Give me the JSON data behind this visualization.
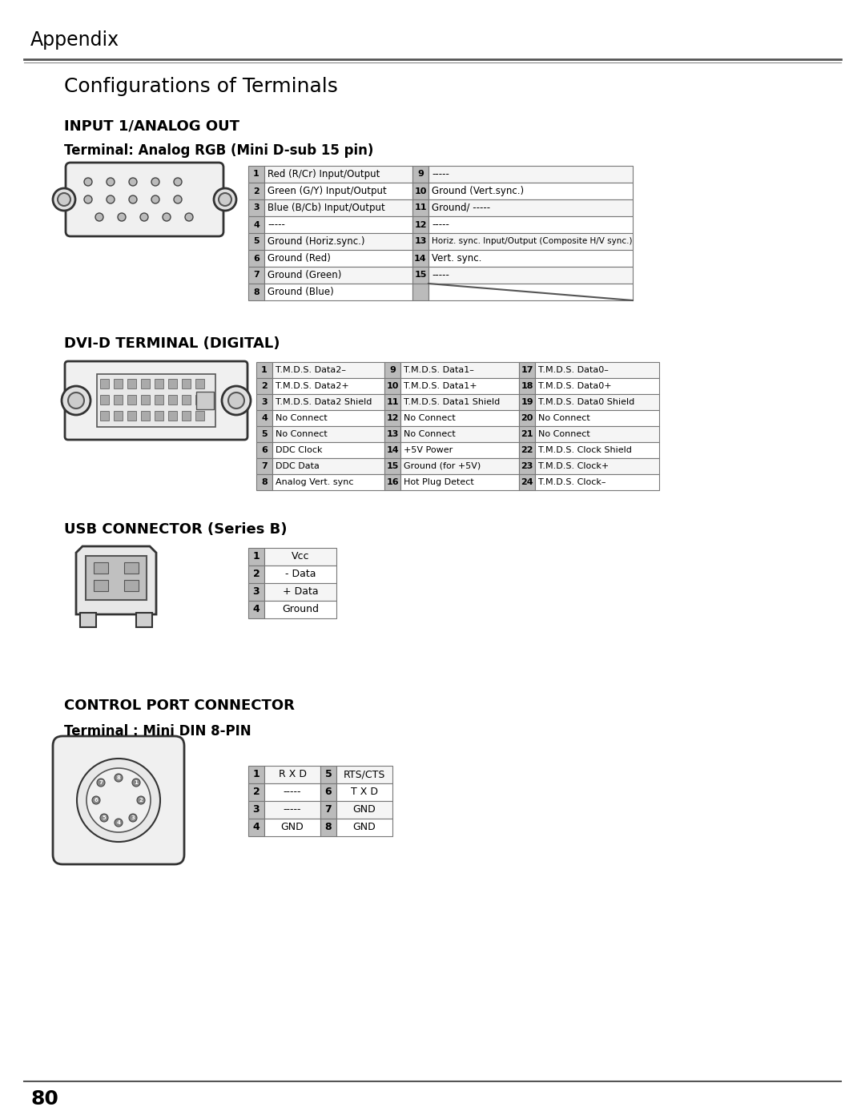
{
  "page_title": "Appendix",
  "section_title": "Configurations of Terminals",
  "bg_color": "#ffffff",
  "row_bg_dark": "#cccccc",
  "row_bg_light": "#ffffff",
  "table_border": "#888888",
  "section1_title": "INPUT 1/ANALOG OUT",
  "section1_subtitle": "Terminal: Analog RGB (Mini D-sub 15 pin)",
  "analog_rows_left": [
    [
      "1",
      "Red (R/Cr) Input/Output"
    ],
    [
      "2",
      "Green (G/Y) Input/Output"
    ],
    [
      "3",
      "Blue (B/Cb) Input/Output"
    ],
    [
      "4",
      "-----"
    ],
    [
      "5",
      "Ground (Horiz.sync.)"
    ],
    [
      "6",
      "Ground (Red)"
    ],
    [
      "7",
      "Ground (Green)"
    ],
    [
      "8",
      "Ground (Blue)"
    ]
  ],
  "analog_rows_right": [
    [
      "9",
      "-----"
    ],
    [
      "10",
      "Ground (Vert.sync.)"
    ],
    [
      "11",
      "Ground/ -----"
    ],
    [
      "12",
      "-----"
    ],
    [
      "13",
      "Horiz. sync. Input/Output (Composite H/V sync.)"
    ],
    [
      "14",
      "Vert. sync."
    ],
    [
      "15",
      "-----"
    ],
    [
      "",
      ""
    ]
  ],
  "section2_title": "DVI-D TERMINAL (DIGITAL)",
  "dvi_rows": [
    [
      "1",
      "T.M.D.S. Data2–",
      "9",
      "T.M.D.S. Data1–",
      "17",
      "T.M.D.S. Data0–"
    ],
    [
      "2",
      "T.M.D.S. Data2+",
      "10",
      "T.M.D.S. Data1+",
      "18",
      "T.M.D.S. Data0+"
    ],
    [
      "3",
      "T.M.D.S. Data2 Shield",
      "11",
      "T.M.D.S. Data1 Shield",
      "19",
      "T.M.D.S. Data0 Shield"
    ],
    [
      "4",
      "No Connect",
      "12",
      "No Connect",
      "20",
      "No Connect"
    ],
    [
      "5",
      "No Connect",
      "13",
      "No Connect",
      "21",
      "No Connect"
    ],
    [
      "6",
      "DDC Clock",
      "14",
      "+5V Power",
      "22",
      "T.M.D.S. Clock Shield"
    ],
    [
      "7",
      "DDC Data",
      "15",
      "Ground (for +5V)",
      "23",
      "T.M.D.S. Clock+"
    ],
    [
      "8",
      "Analog Vert. sync",
      "16",
      "Hot Plug Detect",
      "24",
      "T.M.D.S. Clock–"
    ]
  ],
  "section3_title": "USB CONNECTOR (Series B)",
  "usb_rows": [
    [
      "1",
      "Vcc"
    ],
    [
      "2",
      "- Data"
    ],
    [
      "3",
      "+ Data"
    ],
    [
      "4",
      "Ground"
    ]
  ],
  "section4_title": "CONTROL PORT CONNECTOR",
  "section4_subtitle": "Terminal : Mini DIN 8-PIN",
  "control_rows": [
    [
      "1",
      "R X D",
      "5",
      "RTS/CTS"
    ],
    [
      "2",
      "-----",
      "6",
      "T X D"
    ],
    [
      "3",
      "-----",
      "7",
      "GND"
    ],
    [
      "4",
      "GND",
      "8",
      "GND"
    ]
  ],
  "footer_text": "80"
}
